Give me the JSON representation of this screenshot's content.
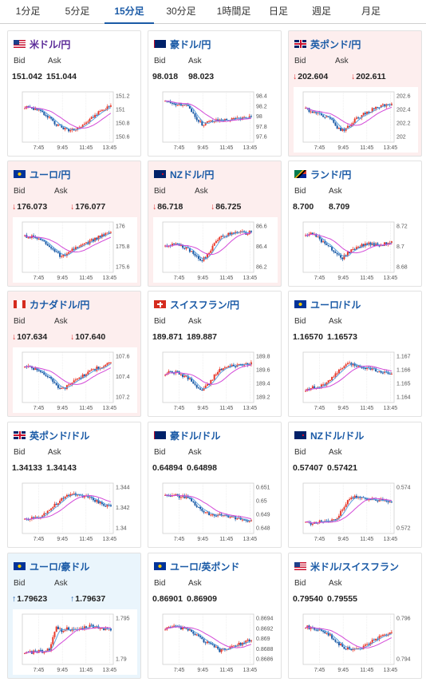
{
  "tabs": [
    {
      "label": "1分足",
      "active": false
    },
    {
      "label": "5分足",
      "active": false
    },
    {
      "label": "15分足",
      "active": true
    },
    {
      "label": "30分足",
      "active": false
    },
    {
      "label": "1時間足",
      "active": false
    },
    {
      "label": "日足",
      "active": false
    },
    {
      "label": "週足",
      "active": false
    },
    {
      "label": "月足",
      "active": false
    }
  ],
  "labels": {
    "bid": "Bid",
    "ask": "Ask"
  },
  "colors": {
    "up_candle": "#e8392a",
    "down_candle": "#1a5aa6",
    "ma_short": "#5aa0e0",
    "ma_long": "#d34ad8",
    "up_bg": "#eaf5fc",
    "down_bg": "#fdeeee"
  },
  "pairs": [
    {
      "name": "米ドル/円",
      "flag": "us",
      "bid": "151.042",
      "ask": "151.044",
      "trend": "neutral",
      "ticks": [
        "151.2",
        "151",
        "150.8",
        "150.6"
      ],
      "x_labels": [
        "7:45",
        "9:45",
        "11:45",
        "13:45"
      ],
      "shape": [
        0.75,
        0.72,
        0.68,
        0.6,
        0.52,
        0.35,
        0.28,
        0.22,
        0.25,
        0.3,
        0.4,
        0.5,
        0.62,
        0.7,
        0.78
      ]
    },
    {
      "name": "豪ドル/円",
      "flag": "au",
      "bid": "98.018",
      "ask": "98.023",
      "trend": "neutral",
      "ticks": [
        "98.4",
        "98.2",
        "98",
        "97.8",
        "97.6"
      ],
      "x_labels": [
        "7:45",
        "9:45",
        "11:45",
        "13:45"
      ],
      "shape": [
        0.85,
        0.84,
        0.82,
        0.8,
        0.72,
        0.5,
        0.35,
        0.4,
        0.42,
        0.45,
        0.44,
        0.46,
        0.48,
        0.5,
        0.52
      ]
    },
    {
      "name": "英ポンド/円",
      "flag": "gb",
      "bid": "202.604",
      "ask": "202.611",
      "trend": "down",
      "ticks": [
        "202.6",
        "202.4",
        "202.2",
        "202"
      ],
      "x_labels": [
        "7:45",
        "9:45",
        "11:45",
        "13:45"
      ],
      "shape": [
        0.7,
        0.65,
        0.6,
        0.55,
        0.5,
        0.3,
        0.22,
        0.3,
        0.45,
        0.55,
        0.62,
        0.7,
        0.75,
        0.8,
        0.82
      ]
    },
    {
      "name": "ユーロ/円",
      "flag": "eu",
      "bid": "176.073",
      "ask": "176.077",
      "trend": "down",
      "ticks": [
        "176",
        "175.8",
        "175.6"
      ],
      "x_labels": [
        "7:45",
        "9:45",
        "11:45",
        "13:45"
      ],
      "shape": [
        0.78,
        0.75,
        0.72,
        0.65,
        0.55,
        0.4,
        0.3,
        0.35,
        0.48,
        0.55,
        0.6,
        0.68,
        0.74,
        0.8,
        0.86
      ]
    },
    {
      "name": "NZドル/円",
      "flag": "nz",
      "bid": "86.718",
      "ask": "86.725",
      "trend": "down",
      "ticks": [
        "86.6",
        "86.4",
        "86.2"
      ],
      "x_labels": [
        "7:45",
        "9:45",
        "11:45",
        "13:45"
      ],
      "shape": [
        0.55,
        0.58,
        0.56,
        0.52,
        0.45,
        0.3,
        0.22,
        0.35,
        0.6,
        0.75,
        0.8,
        0.82,
        0.85,
        0.84,
        0.86
      ]
    },
    {
      "name": "ランド/円",
      "flag": "za",
      "bid": "8.700",
      "ask": "8.709",
      "trend": "neutral",
      "ticks": [
        "8.72",
        "8.7",
        "8.68"
      ],
      "x_labels": [
        "7:45",
        "9:45",
        "11:45",
        "13:45"
      ],
      "shape": [
        0.8,
        0.82,
        0.75,
        0.6,
        0.5,
        0.35,
        0.28,
        0.4,
        0.5,
        0.55,
        0.6,
        0.58,
        0.56,
        0.6,
        0.65
      ]
    },
    {
      "name": "カナダドル/円",
      "flag": "ca",
      "bid": "107.634",
      "ask": "107.640",
      "trend": "down",
      "ticks": [
        "107.6",
        "107.4",
        "107.2"
      ],
      "x_labels": [
        "7:45",
        "9:45",
        "11:45",
        "13:45"
      ],
      "shape": [
        0.78,
        0.75,
        0.7,
        0.62,
        0.5,
        0.35,
        0.25,
        0.32,
        0.45,
        0.52,
        0.6,
        0.68,
        0.74,
        0.8,
        0.86
      ]
    },
    {
      "name": "スイスフラン/円",
      "flag": "ch",
      "bid": "189.871",
      "ask": "189.887",
      "trend": "neutral",
      "ticks": [
        "189.8",
        "189.6",
        "189.4",
        "189.2"
      ],
      "x_labels": [
        "7:45",
        "9:45",
        "11:45",
        "13:45"
      ],
      "shape": [
        0.6,
        0.65,
        0.62,
        0.55,
        0.48,
        0.3,
        0.22,
        0.35,
        0.55,
        0.7,
        0.75,
        0.78,
        0.8,
        0.82,
        0.86
      ]
    },
    {
      "name": "ユーロ/ドル",
      "flag": "eu",
      "bid": "1.16570",
      "ask": "1.16573",
      "trend": "neutral",
      "ticks": [
        "1.167",
        "1.166",
        "1.165",
        "1.164"
      ],
      "x_labels": [
        "7:45",
        "9:45",
        "11:45",
        "13:45"
      ],
      "shape": [
        0.25,
        0.28,
        0.3,
        0.35,
        0.45,
        0.6,
        0.75,
        0.82,
        0.8,
        0.76,
        0.74,
        0.7,
        0.66,
        0.62,
        0.6
      ]
    },
    {
      "name": "英ポンド/ドル",
      "flag": "gb",
      "bid": "1.34133",
      "ask": "1.34143",
      "trend": "neutral",
      "ticks": [
        "1.344",
        "1.342",
        "1.34"
      ],
      "x_labels": [
        "7:45",
        "9:45",
        "11:45",
        "13:45"
      ],
      "shape": [
        0.25,
        0.3,
        0.32,
        0.38,
        0.48,
        0.6,
        0.72,
        0.8,
        0.84,
        0.82,
        0.78,
        0.72,
        0.66,
        0.6,
        0.56
      ]
    },
    {
      "name": "豪ドル/ドル",
      "flag": "au",
      "bid": "0.64894",
      "ask": "0.64898",
      "trend": "neutral",
      "ticks": [
        "0.651",
        "0.65",
        "0.649",
        "0.648"
      ],
      "x_labels": [
        "7:45",
        "9:45",
        "11:45",
        "13:45"
      ],
      "shape": [
        0.8,
        0.82,
        0.8,
        0.78,
        0.76,
        0.6,
        0.45,
        0.4,
        0.38,
        0.35,
        0.32,
        0.3,
        0.28,
        0.26,
        0.25
      ]
    },
    {
      "name": "NZドル/ドル",
      "flag": "nz",
      "bid": "0.57407",
      "ask": "0.57421",
      "trend": "neutral",
      "ticks": [
        "0.574",
        "0.572"
      ],
      "x_labels": [
        "7:45",
        "9:45",
        "11:45",
        "13:45"
      ],
      "shape": [
        0.2,
        0.18,
        0.2,
        0.22,
        0.24,
        0.3,
        0.5,
        0.7,
        0.8,
        0.76,
        0.74,
        0.72,
        0.7,
        0.68,
        0.66
      ]
    },
    {
      "name": "ユーロ/豪ドル",
      "flag": "eu",
      "bid": "1.79623",
      "ask": "1.79637",
      "trend": "up",
      "ticks": [
        "1.795",
        "1.79"
      ],
      "x_labels": [
        "7:45",
        "9:45",
        "11:45",
        "13:45"
      ],
      "shape": [
        0.2,
        0.22,
        0.25,
        0.24,
        0.3,
        0.78,
        0.72,
        0.76,
        0.7,
        0.74,
        0.8,
        0.82,
        0.78,
        0.76,
        0.72
      ]
    },
    {
      "name": "ユーロ/英ポンド",
      "flag": "eu",
      "bid": "0.86901",
      "ask": "0.86909",
      "trend": "neutral",
      "ticks": [
        "0.8694",
        "0.8692",
        "0.869",
        "0.8688",
        "0.8686"
      ],
      "x_labels": [
        "7:45",
        "9:45",
        "11:45",
        "13:45"
      ],
      "shape": [
        0.75,
        0.78,
        0.8,
        0.76,
        0.7,
        0.62,
        0.5,
        0.42,
        0.35,
        0.25,
        0.3,
        0.35,
        0.4,
        0.45,
        0.5
      ]
    },
    {
      "name": "米ドル/スイスフラン",
      "flag": "us",
      "bid": "0.79540",
      "ask": "0.79555",
      "trend": "neutral",
      "ticks": [
        "0.796",
        "0.794"
      ],
      "x_labels": [
        "7:45",
        "9:45",
        "11:45",
        "13:45"
      ],
      "shape": [
        0.8,
        0.78,
        0.75,
        0.7,
        0.6,
        0.45,
        0.35,
        0.3,
        0.28,
        0.32,
        0.4,
        0.5,
        0.58,
        0.62,
        0.68
      ]
    }
  ]
}
